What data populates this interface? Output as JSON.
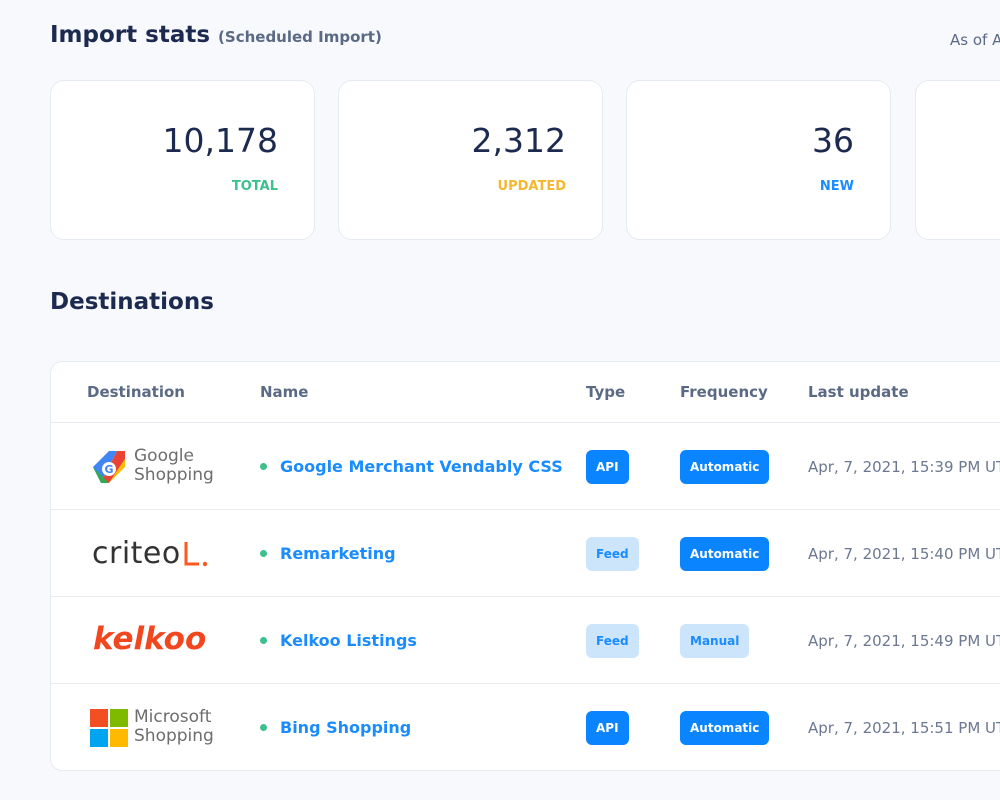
{
  "header": {
    "title": "Import stats",
    "subtitle": "(Scheduled Import)",
    "as_of": "As of A"
  },
  "stats": [
    {
      "value": "10,178",
      "label": "TOTAL"
    },
    {
      "value": "2,312",
      "label": "UPDATED"
    },
    {
      "value": "36",
      "label": "NEW"
    }
  ],
  "destinations": {
    "title": "Destinations",
    "columns": [
      "Destination",
      "Name",
      "Type",
      "Frequency",
      "Last update"
    ],
    "rows": [
      {
        "logo": [
          "Google",
          "Shopping"
        ],
        "name": "Google Merchant Vendably CSS",
        "type": "API",
        "frequency": "Automatic",
        "last_update": "Apr, 7, 2021, 15:39 PM UT"
      },
      {
        "logo": [
          "criteo"
        ],
        "name": "Remarketing",
        "type": "Feed",
        "frequency": "Automatic",
        "last_update": "Apr, 7, 2021, 15:40 PM UT"
      },
      {
        "logo": [
          "kelkoo"
        ],
        "name": "Kelkoo Listings",
        "type": "Feed",
        "frequency": "Manual",
        "last_update": "Apr, 7, 2021, 15:49 PM UT"
      },
      {
        "logo": [
          "Microsoft",
          "Shopping"
        ],
        "name": "Bing Shopping",
        "type": "API",
        "frequency": "Automatic",
        "last_update": "Apr, 7, 2021, 15:51 PM UT"
      }
    ]
  }
}
